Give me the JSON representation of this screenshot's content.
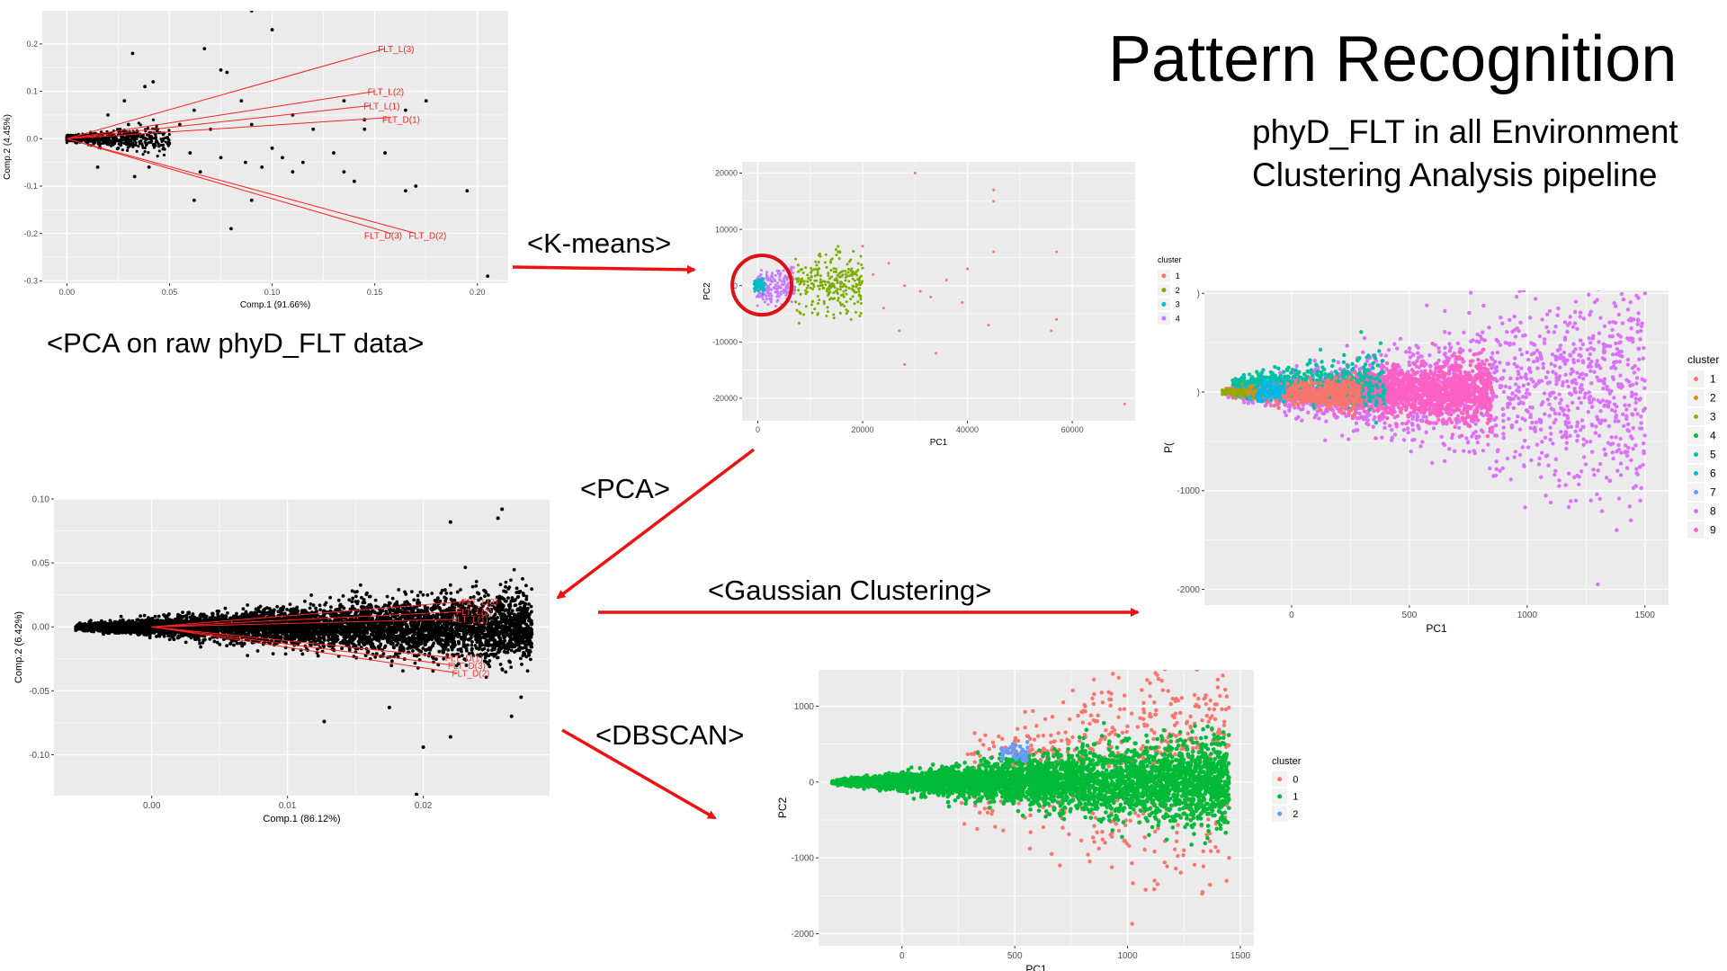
{
  "slide": {
    "title": "Pattern Recognition",
    "subtitle_lines": [
      "phyD_FLT in all Environment",
      "Clustering Analysis pipeline"
    ],
    "caption_raw_pca": "<PCA on raw phyD_FLT data>",
    "steps": {
      "kmeans": "<K-means>",
      "pca": "<PCA>",
      "gaussian": "<Gaussian Clustering>",
      "dbscan": "<DBSCAN>"
    },
    "colors": {
      "arrow": "#ee1111",
      "highlight_circle": "#dd1111",
      "panel_bg": "#ebebeb",
      "grid": "#ffffff"
    }
  },
  "chart_data": [
    {
      "type": "scatter",
      "id": "raw-pca",
      "xlabel": "Comp.1 (91.66%)",
      "ylabel": "Comp.2 (4.45%)",
      "xlim": [
        -0.012,
        0.215
      ],
      "ylim": [
        -0.305,
        0.27
      ],
      "xticks": [
        0.0,
        0.05,
        0.1,
        0.15,
        0.2
      ],
      "xtick_labels": [
        "0.00",
        "0.05",
        "0.10",
        "0.15",
        "0.20"
      ],
      "yticks": [
        -0.3,
        -0.2,
        -0.1,
        0.0,
        0.1,
        0.2
      ],
      "ytick_labels": [
        "-0.3",
        "-0.2",
        "-0.1",
        "0.0",
        "0.1",
        "0.2"
      ],
      "point_color": "#000000",
      "points": [
        [
          0.09,
          0.27
        ],
        [
          0.1,
          0.23
        ],
        [
          0.067,
          0.19
        ],
        [
          0.032,
          0.18
        ],
        [
          0.075,
          0.145
        ],
        [
          0.078,
          0.14
        ],
        [
          0.042,
          0.12
        ],
        [
          0.038,
          0.11
        ],
        [
          0.028,
          0.08
        ],
        [
          0.062,
          0.06
        ],
        [
          0.175,
          0.08
        ],
        [
          0.135,
          0.08
        ],
        [
          0.165,
          0.06
        ],
        [
          0.11,
          0.05
        ],
        [
          0.145,
          0.04
        ],
        [
          0.12,
          0.02
        ],
        [
          0.09,
          0.03
        ],
        [
          0.1,
          -0.02
        ],
        [
          0.087,
          -0.05
        ],
        [
          0.13,
          -0.03
        ],
        [
          0.075,
          -0.04
        ],
        [
          0.095,
          -0.06
        ],
        [
          0.155,
          -0.03
        ],
        [
          0.115,
          -0.05
        ],
        [
          0.06,
          -0.03
        ],
        [
          0.04,
          -0.06
        ],
        [
          0.065,
          -0.07
        ],
        [
          0.11,
          -0.07
        ],
        [
          0.17,
          -0.1
        ],
        [
          0.165,
          -0.11
        ],
        [
          0.135,
          -0.07
        ],
        [
          0.195,
          -0.11
        ],
        [
          0.09,
          -0.13
        ],
        [
          0.062,
          -0.13
        ],
        [
          0.08,
          -0.19
        ],
        [
          0.205,
          -0.29
        ],
        [
          0.025,
          -0.02
        ],
        [
          0.03,
          0.03
        ],
        [
          0.05,
          -0.01
        ],
        [
          0.105,
          -0.04
        ],
        [
          0.14,
          -0.09
        ],
        [
          0.145,
          0.02
        ],
        [
          0.07,
          0.02
        ],
        [
          0.085,
          0.08
        ],
        [
          0.055,
          0.03
        ],
        [
          0.02,
          0.05
        ],
        [
          0.015,
          -0.06
        ],
        [
          0.033,
          -0.08
        ]
      ],
      "cloud": {
        "x_max": 0.05,
        "spread": 0.07
      },
      "loadings": [
        {
          "label": "FLT_L(3)",
          "x": 0.155,
          "y": 0.19
        },
        {
          "label": "FLT_L(2)",
          "x": 0.15,
          "y": 0.1
        },
        {
          "label": "FLT_L(1)",
          "x": 0.148,
          "y": 0.07
        },
        {
          "label": "FLT_D(1)",
          "x": 0.158,
          "y": 0.045
        },
        {
          "label": "FLT_D(3)",
          "x": 0.158,
          "y": -0.2
        },
        {
          "label": "FLT_D(2)",
          "x": 0.17,
          "y": -0.2
        }
      ]
    },
    {
      "type": "scatter",
      "id": "kmeans",
      "xlabel": "PC1",
      "ylabel": "PC2",
      "xlim": [
        -3000,
        72000
      ],
      "ylim": [
        -24000,
        22000
      ],
      "xticks": [
        0,
        20000,
        40000,
        60000
      ],
      "xtick_labels": [
        "0",
        "20000",
        "40000",
        "60000"
      ],
      "yticks": [
        -20000,
        -10000,
        0,
        10000,
        20000
      ],
      "ytick_labels": [
        "-20000",
        "-10000",
        "0",
        "10000",
        "20000"
      ],
      "legend": {
        "title": "cluster",
        "labels": [
          "1",
          "2",
          "3",
          "4"
        ],
        "colors": [
          "#f8766d",
          "#7cae00",
          "#00bfc4",
          "#c77cff"
        ],
        "position": "right"
      },
      "outliers": [
        [
          30000,
          20000
        ],
        [
          45000,
          17000
        ],
        [
          45000,
          15000
        ],
        [
          57000,
          6000
        ],
        [
          45000,
          6000
        ],
        [
          40000,
          3000
        ],
        [
          56000,
          -8000
        ],
        [
          57000,
          -6000
        ],
        [
          44000,
          -7000
        ],
        [
          34000,
          -12000
        ],
        [
          28000,
          -14000
        ],
        [
          70000,
          -21000
        ],
        [
          33000,
          -2000
        ],
        [
          24000,
          -4000
        ],
        [
          28000,
          0
        ],
        [
          36000,
          1000
        ],
        [
          31000,
          -1000
        ],
        [
          22000,
          2000
        ],
        [
          39000,
          -3000
        ],
        [
          25000,
          4000
        ],
        [
          20000,
          7000
        ],
        [
          27000,
          -8000
        ]
      ]
    },
    {
      "type": "scatter",
      "id": "pca-second",
      "xlabel": "Comp.1 (86.12%)",
      "ylabel": "Comp.2 (6.42%)",
      "xlim": [
        -0.0072,
        0.0293
      ],
      "ylim": [
        -0.132,
        0.1
      ],
      "xticks": [
        0.0,
        0.01,
        0.02
      ],
      "xtick_labels": [
        "0.00",
        "0.01",
        "0.02"
      ],
      "yticks": [
        -0.1,
        -0.05,
        0.0,
        0.05,
        0.1
      ],
      "ytick_labels": [
        "-0.10",
        "-0.05",
        "0.00",
        "0.05",
        "0.10"
      ],
      "point_color": "#000000",
      "cloud": {
        "x_min": -0.0056,
        "x_max": 0.028,
        "spread": 0.06
      },
      "outliers": [
        [
          0.0258,
          0.092
        ],
        [
          0.022,
          0.082
        ],
        [
          0.0255,
          0.085
        ],
        [
          0.022,
          -0.086
        ],
        [
          0.02,
          -0.094
        ],
        [
          0.0195,
          -0.131
        ],
        [
          0.0127,
          -0.074
        ],
        [
          0.0265,
          -0.07
        ],
        [
          0.0272,
          -0.055
        ],
        [
          0.0175,
          -0.063
        ]
      ],
      "loadings": [
        {
          "label": "FLT_L(3)",
          "x": 0.0232,
          "y": 0.02
        },
        {
          "label": "FLT_L(2)",
          "x": 0.0228,
          "y": 0.012
        },
        {
          "label": "FLT_L(1)",
          "x": 0.0225,
          "y": 0.006
        },
        {
          "label": "FLT_D(1)",
          "x": 0.022,
          "y": -0.024
        },
        {
          "label": "FLT_D(3)",
          "x": 0.0222,
          "y": -0.03
        },
        {
          "label": "FLT_D(2)",
          "x": 0.0225,
          "y": -0.036
        }
      ]
    },
    {
      "type": "scatter",
      "id": "gaussian",
      "xlabel": "PC1",
      "ylabel": "P(",
      "xlim": [
        -370,
        1600
      ],
      "ylim": [
        -2160,
        1030
      ],
      "xticks": [
        0,
        500,
        1000,
        1500
      ],
      "xtick_labels": [
        "0",
        "500",
        "1000",
        "1500"
      ],
      "yticks": [
        -2000,
        -1000,
        0,
        1000
      ],
      "ytick_labels": [
        "-2000",
        "-1000",
        ")",
        ")"
      ],
      "legend": {
        "title": "cluster",
        "labels": [
          "1",
          "2",
          "3",
          "4",
          "5",
          "6",
          "7",
          "8",
          "9"
        ],
        "colors": [
          "#f8766d",
          "#d39200",
          "#93aa00",
          "#00ba38",
          "#00c19f",
          "#00b9e3",
          "#619cff",
          "#db72fb",
          "#ff61c3"
        ],
        "position": "right"
      },
      "outliers": [
        [
          1400,
          1400
        ],
        [
          1500,
          1000
        ],
        [
          1380,
          -1400
        ],
        [
          1440,
          -1300
        ],
        [
          1300,
          -1950
        ],
        [
          1480,
          -1100
        ],
        [
          1350,
          -900
        ],
        [
          650,
          -700
        ],
        [
          1100,
          -1120
        ],
        [
          1495,
          -600
        ],
        [
          1120,
          -800
        ]
      ]
    },
    {
      "type": "scatter",
      "id": "dbscan",
      "xlabel": "PC1",
      "ylabel": "PC2",
      "xlim": [
        -370,
        1560
      ],
      "ylim": [
        -2160,
        1480
      ],
      "xticks": [
        0,
        500,
        1000,
        1500
      ],
      "xtick_labels": [
        "0",
        "500",
        "1000",
        "1500"
      ],
      "yticks": [
        -2000,
        -1000,
        0,
        1000
      ],
      "ytick_labels": [
        "-2000",
        "-1000",
        "0",
        "1000"
      ],
      "legend": {
        "title": "cluster",
        "labels": [
          "0",
          "1",
          "2"
        ],
        "colors": [
          "#f8766d",
          "#00ba38",
          "#619cff"
        ],
        "position": "right"
      },
      "outliers": [
        [
          1400,
          1350
        ],
        [
          1400,
          1250
        ],
        [
          1180,
          1200
        ],
        [
          1200,
          1100
        ],
        [
          1300,
          1000
        ],
        [
          1100,
          900
        ],
        [
          1020,
          -1870
        ],
        [
          1120,
          -1300
        ],
        [
          1080,
          -1420
        ],
        [
          700,
          -1100
        ],
        [
          1450,
          -1000
        ],
        [
          900,
          -800
        ],
        [
          1250,
          -900
        ]
      ]
    }
  ]
}
